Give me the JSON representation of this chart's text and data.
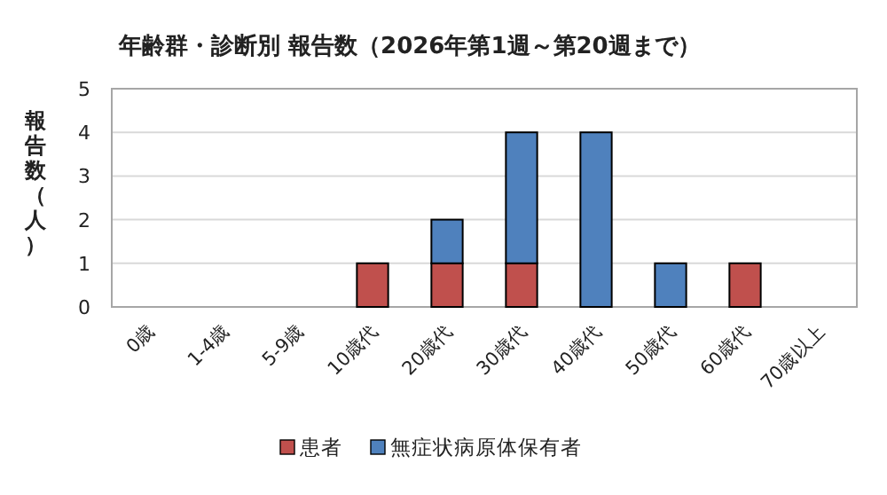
{
  "chart_data": {
    "type": "bar",
    "title": "年齢群・診断別 報告数（2026年第1週～第20週まで）",
    "ylabel": "報告数（人）",
    "categories": [
      "0歳",
      "1-4歳",
      "5-9歳",
      "10歳代",
      "20歳代",
      "30歳代",
      "40歳代",
      "50歳代",
      "60歳代",
      "70歳以上"
    ],
    "series": [
      {
        "name": "患者",
        "color": "#c0504d",
        "values": [
          0,
          0,
          0,
          1,
          1,
          1,
          0,
          0,
          1,
          0
        ]
      },
      {
        "name": "無症状病原体保有者",
        "color": "#4f81bd",
        "values": [
          0,
          0,
          0,
          0,
          1,
          3,
          4,
          1,
          0,
          0
        ]
      }
    ],
    "stacked": true,
    "ylim": [
      0,
      5
    ],
    "yticks": [
      0,
      1,
      2,
      3,
      4,
      5
    ],
    "grid": "y",
    "legend": "bottom"
  }
}
